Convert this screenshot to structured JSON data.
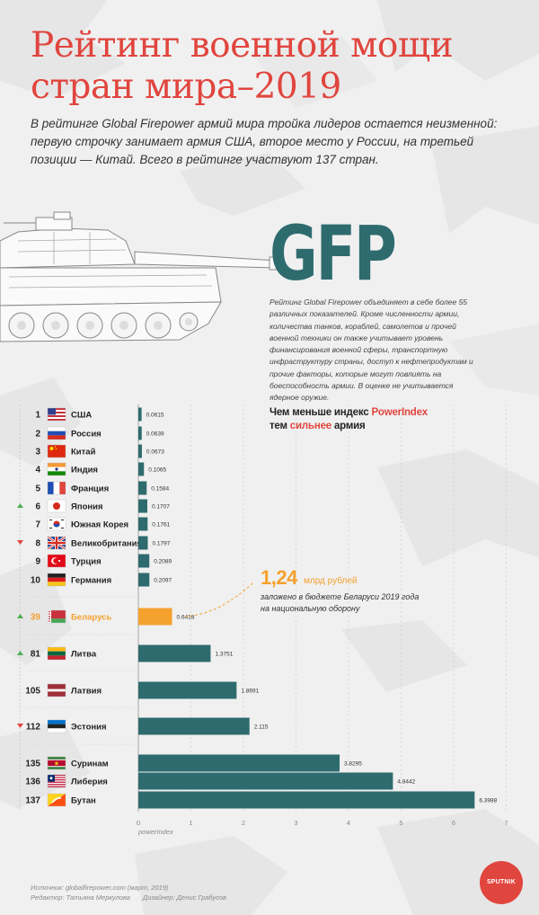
{
  "title_line1": "Рейтинг военной мощи",
  "title_line2": "стран мира–2019",
  "intro": "В рейтинге Global Firepower армий мира тройка лидеров остается неизменной: первую строчку занимает армия США, второе место у России, на третьей позиции — Китай. Всего в рейтинге участвуют 137 стран.",
  "gfp_logo": "GFP",
  "gfp_description": "Рейтинг Global Firepower объединяет в себе более 55 различных показателей. Кроме численности армии, количества танков, кораблей, самолетов и прочей военной техники он также учитывает уровень финансирования военной сферы, транспортную инфраструктуру страны, доступ к нефтепродуктам и прочие факторы, которые могут повлиять на боеспособность армии. В оценке не учитывается ядерное оружие.",
  "legend_note": {
    "part1": "Чем меньше индекс ",
    "part2": "PowerIndex",
    "part3": "тем ",
    "part4": "сильнее",
    "part5": " армия"
  },
  "budget": {
    "value": "1,24",
    "unit": "млрд рублей",
    "desc_line1": "заложено в бюджете Беларуси 2019 года",
    "desc_line2": "на национальную оборону"
  },
  "colors": {
    "bar": "#2e6b6e",
    "highlight": "#f4a12e",
    "accent": "#e0453e",
    "up": "#4caf50",
    "down": "#e0453e"
  },
  "chart_data": {
    "type": "bar",
    "orientation": "horizontal",
    "xlabel": "powerIndex",
    "xlim": [
      0,
      7
    ],
    "xticks": [
      0,
      1,
      2,
      3,
      4,
      5,
      6,
      7
    ],
    "rows": [
      {
        "rank": "1",
        "country": "США",
        "value": 0.0615,
        "label": "0.0615",
        "trend": "none",
        "flag": "usa"
      },
      {
        "rank": "2",
        "country": "Россия",
        "value": 0.0639,
        "label": "0.0639",
        "trend": "none",
        "flag": "russia"
      },
      {
        "rank": "3",
        "country": "Китай",
        "value": 0.0673,
        "label": "0.0673",
        "trend": "none",
        "flag": "china"
      },
      {
        "rank": "4",
        "country": "Индия",
        "value": 0.1065,
        "label": "0.1065",
        "trend": "none",
        "flag": "india"
      },
      {
        "rank": "5",
        "country": "Франция",
        "value": 0.1584,
        "label": "0.1584",
        "trend": "none",
        "flag": "france"
      },
      {
        "rank": "6",
        "country": "Япония",
        "value": 0.1707,
        "label": "0.1707",
        "trend": "up",
        "flag": "japan"
      },
      {
        "rank": "7",
        "country": "Южная Корея",
        "value": 0.1761,
        "label": "0.1761",
        "trend": "none",
        "flag": "south-korea"
      },
      {
        "rank": "8",
        "country": "Великобритания",
        "value": 0.1797,
        "label": "0.1797",
        "trend": "down",
        "flag": "uk"
      },
      {
        "rank": "9",
        "country": "Турция",
        "value": 0.2089,
        "label": "0.2089",
        "trend": "none",
        "flag": "turkey"
      },
      {
        "rank": "10",
        "country": "Германия",
        "value": 0.2097,
        "label": "0.2097",
        "trend": "none",
        "flag": "germany"
      },
      {
        "rank": "39",
        "country": "Беларусь",
        "value": 0.6418,
        "label": "0.6418",
        "trend": "up",
        "flag": "belarus",
        "highlight": true
      },
      {
        "rank": "81",
        "country": "Литва",
        "value": 1.3751,
        "label": "1.3751",
        "trend": "up",
        "flag": "lithuania"
      },
      {
        "rank": "105",
        "country": "Латвия",
        "value": 1.8691,
        "label": "1.8691",
        "trend": "none",
        "flag": "latvia"
      },
      {
        "rank": "112",
        "country": "Эстония",
        "value": 2.115,
        "label": "2.115",
        "trend": "down",
        "flag": "estonia"
      },
      {
        "rank": "135",
        "country": "Суринам",
        "value": 3.8295,
        "label": "3.8295",
        "trend": "none",
        "flag": "suriname"
      },
      {
        "rank": "136",
        "country": "Либерия",
        "value": 4.8442,
        "label": "4.8442",
        "trend": "none",
        "flag": "liberia"
      },
      {
        "rank": "137",
        "country": "Бутан",
        "value": 6.3988,
        "label": "6.3988",
        "trend": "none",
        "flag": "bhutan"
      }
    ]
  },
  "source": {
    "line1": "Источник: globalfirepower.com (март, 2019)",
    "editor": "Редактор: Татьяна Меркулова",
    "designer": "Дизайнер: Денис Грабусов"
  },
  "logo_text": "SPUTNIK"
}
